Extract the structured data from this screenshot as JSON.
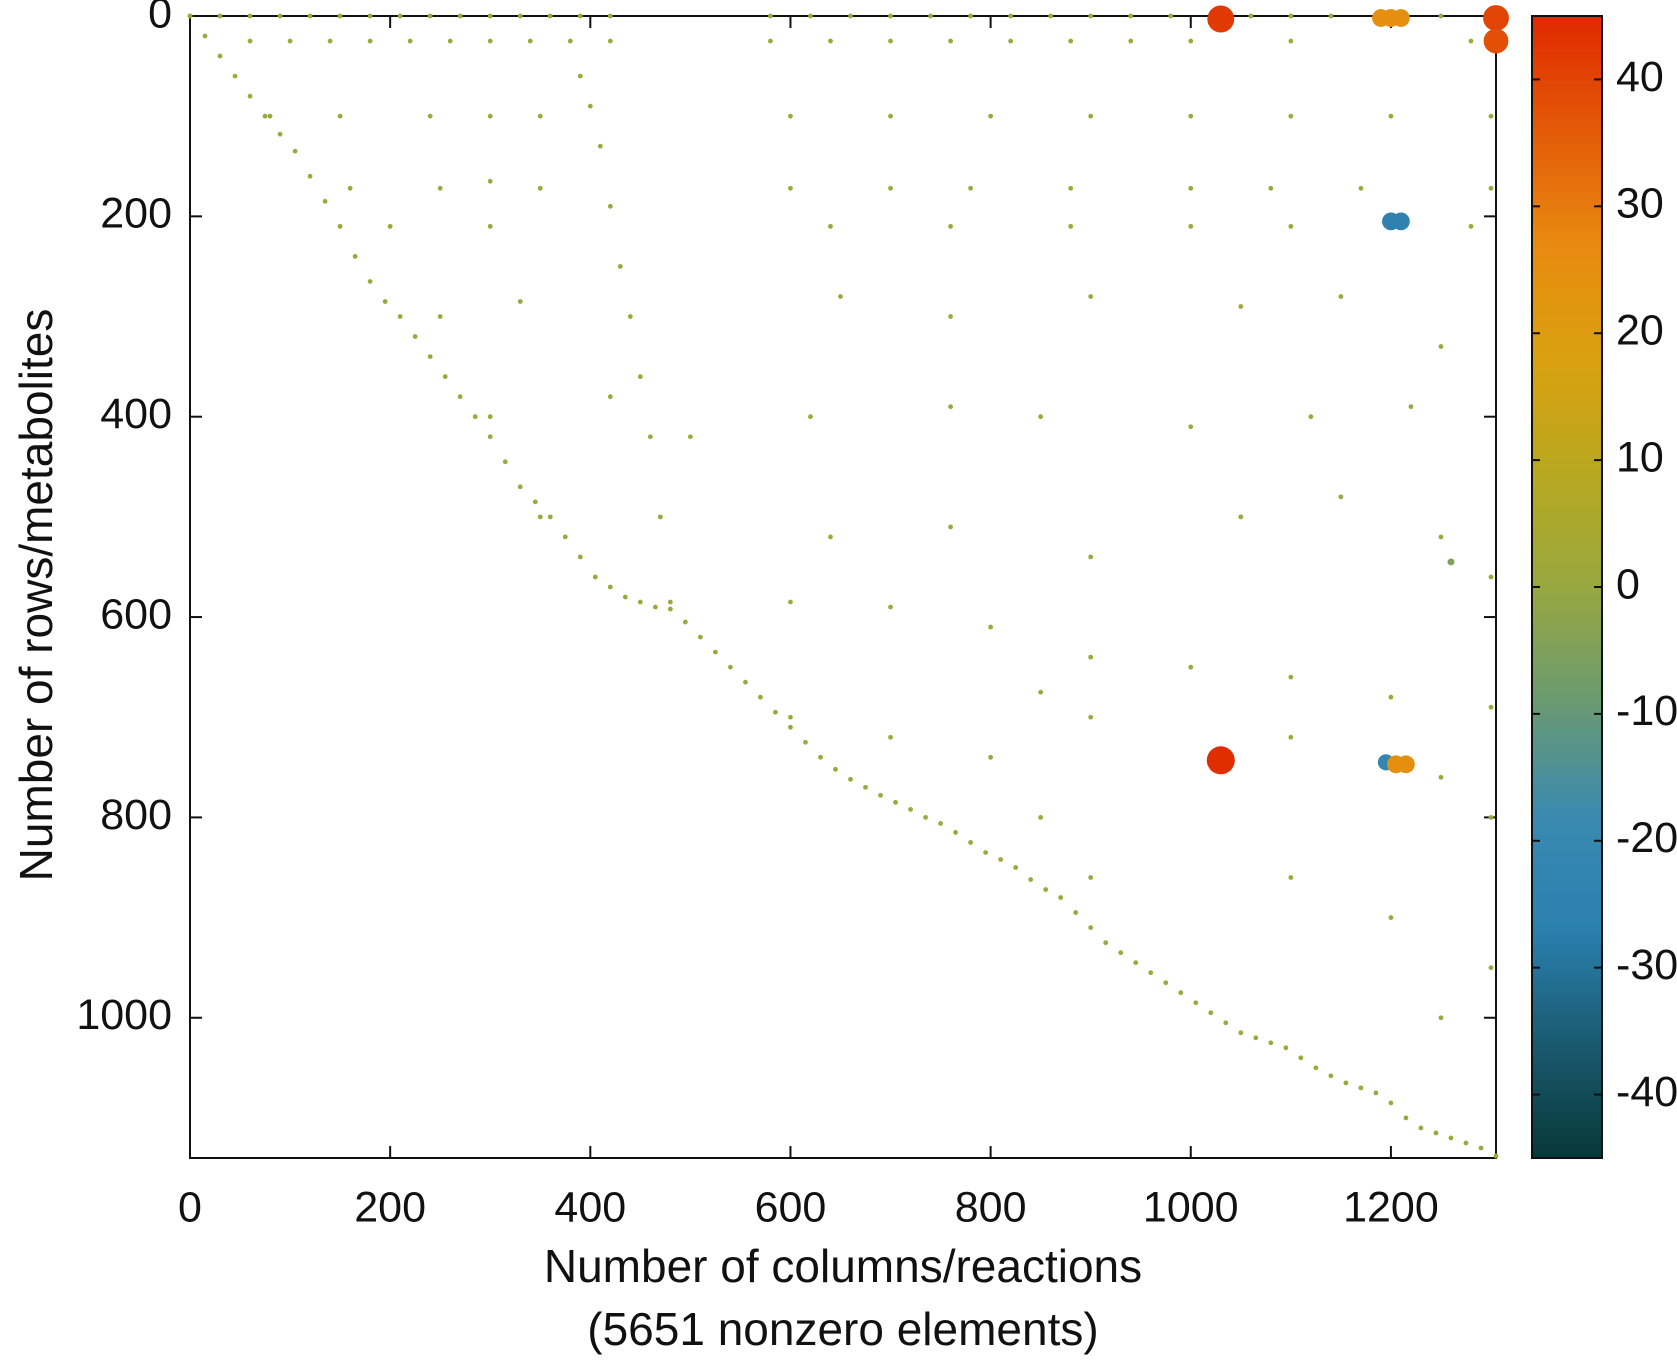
{
  "chart_data": {
    "type": "scatter",
    "xlabel": "Number of columns/reactions",
    "xlabel2": "(5651 nonzero elements)",
    "ylabel": "Number of rows/metabolites",
    "xlim": [
      0,
      1305
    ],
    "ylim": [
      0,
      1140
    ],
    "y_inverted": true,
    "xticks": [
      0,
      200,
      400,
      600,
      800,
      1000,
      1200
    ],
    "yticks": [
      0,
      200,
      400,
      600,
      800,
      1000
    ],
    "clim": [
      -45,
      45
    ],
    "cticks": [
      -40,
      -30,
      -20,
      -10,
      0,
      10,
      20,
      30,
      40
    ],
    "colormap": [
      "#083838",
      "#1a5a70",
      "#2a80b0",
      "#3a8ab0",
      "#6a9a70",
      "#98a840",
      "#b8a820",
      "#daa010",
      "#e88a10",
      "#e45a08",
      "#e02800"
    ],
    "series": [
      {
        "x": [
          0,
          15,
          30,
          45,
          60,
          75,
          90,
          105,
          120,
          135,
          150,
          165,
          180,
          195,
          210,
          225,
          240,
          255,
          270,
          285,
          300,
          315,
          330,
          345,
          360,
          375,
          390,
          405,
          420,
          435,
          450,
          465,
          480,
          495,
          510,
          525,
          540,
          555,
          570,
          585,
          600,
          615,
          630,
          645,
          660,
          675,
          690,
          705,
          720,
          735,
          750,
          765,
          780,
          795,
          810,
          825,
          840,
          855,
          870,
          885,
          900,
          915,
          930,
          945,
          960,
          975,
          990,
          1005,
          1020,
          1035,
          1050,
          1065,
          1080,
          1095,
          1110,
          1125,
          1140,
          1155,
          1170,
          1185,
          1200,
          1215,
          1230,
          1245,
          1260,
          1275,
          1290,
          1305
        ],
        "y": [
          0,
          20,
          40,
          60,
          80,
          100,
          118,
          135,
          160,
          185,
          210,
          240,
          265,
          285,
          300,
          320,
          340,
          360,
          380,
          400,
          420,
          445,
          470,
          485,
          500,
          520,
          540,
          560,
          570,
          580,
          585,
          590,
          592,
          605,
          620,
          635,
          650,
          665,
          680,
          695,
          710,
          725,
          740,
          752,
          762,
          770,
          778,
          785,
          792,
          800,
          806,
          815,
          825,
          835,
          842,
          850,
          862,
          872,
          880,
          895,
          910,
          925,
          935,
          945,
          955,
          965,
          975,
          985,
          995,
          1005,
          1015,
          1020,
          1025,
          1030,
          1040,
          1050,
          1058,
          1065,
          1070,
          1075,
          1085,
          1100,
          1110,
          1115,
          1120,
          1125,
          1130,
          1138
        ],
        "values": [
          1,
          1,
          1,
          1,
          1,
          1,
          1,
          1,
          1,
          1,
          1,
          1,
          1,
          1,
          1,
          1,
          1,
          1,
          1,
          1,
          1,
          1,
          1,
          1,
          1,
          1,
          1,
          1,
          1,
          1,
          1,
          1,
          1,
          1,
          1,
          1,
          1,
          1,
          1,
          1,
          1,
          1,
          1,
          1,
          1,
          1,
          1,
          1,
          1,
          1,
          1,
          1,
          1,
          1,
          1,
          1,
          1,
          1,
          1,
          1,
          1,
          1,
          1,
          1,
          1,
          1,
          1,
          1,
          1,
          1,
          1,
          1,
          1,
          1,
          1,
          1,
          1,
          1,
          1,
          1,
          1,
          1,
          1,
          1,
          1,
          1,
          1,
          1
        ]
      },
      {
        "x": [
          390,
          400,
          410,
          420,
          430,
          440,
          450,
          460,
          470,
          480
        ],
        "y": [
          60,
          90,
          130,
          190,
          250,
          300,
          360,
          420,
          500,
          585
        ],
        "values": [
          1,
          1,
          1,
          1,
          1,
          1,
          1,
          1,
          1,
          1
        ]
      },
      {
        "x": [
          0,
          30,
          60,
          90,
          120,
          150,
          180,
          210,
          240,
          270,
          300,
          330,
          360,
          390,
          420,
          580,
          620,
          660,
          700,
          740,
          780,
          820,
          860,
          900,
          940,
          980,
          1060,
          1100,
          1140,
          1250,
          60,
          100,
          140,
          180,
          220,
          260,
          300,
          340,
          380,
          420,
          580,
          640,
          700,
          760,
          820,
          880,
          940,
          1000,
          1100,
          1280
        ],
        "y": [
          0,
          0,
          0,
          0,
          0,
          0,
          0,
          0,
          0,
          0,
          0,
          0,
          0,
          0,
          0,
          0,
          0,
          0,
          0,
          0,
          0,
          0,
          0,
          0,
          0,
          0,
          0,
          0,
          0,
          0,
          25,
          25,
          25,
          25,
          25,
          25,
          25,
          25,
          25,
          25,
          25,
          25,
          25,
          25,
          25,
          25,
          25,
          25,
          25,
          25
        ],
        "values": [
          1,
          1,
          1,
          1,
          1,
          1,
          1,
          1,
          1,
          1,
          1,
          1,
          1,
          1,
          1,
          1,
          1,
          1,
          1,
          1,
          1,
          1,
          1,
          1,
          1,
          1,
          1,
          1,
          1,
          1,
          1,
          1,
          1,
          1,
          1,
          1,
          1,
          1,
          1,
          1,
          1,
          1,
          1,
          1,
          1,
          1,
          1,
          1,
          1,
          1
        ]
      },
      {
        "x": [
          80,
          150,
          240,
          300,
          350,
          600,
          700,
          800,
          900,
          1000,
          1100,
          1200,
          1300,
          160,
          250,
          300,
          350,
          600,
          700,
          780,
          880,
          1000,
          1080,
          1170,
          1300,
          200,
          300,
          640,
          760,
          880,
          1000,
          1100,
          1280,
          250,
          330,
          650,
          760,
          900,
          1050,
          1150,
          1250,
          300,
          420,
          620,
          760,
          850,
          1000,
          1120,
          1220,
          350,
          500,
          640,
          760,
          900,
          1050,
          1150,
          1250,
          1300,
          600,
          700,
          800,
          900,
          1000,
          1100,
          1200,
          1300,
          600,
          700,
          800,
          850,
          900,
          1100,
          1250,
          1300,
          850,
          900,
          1100,
          1200,
          1300,
          1250
        ],
        "y": [
          100,
          100,
          100,
          100,
          100,
          100,
          100,
          100,
          100,
          100,
          100,
          100,
          100,
          172,
          172,
          165,
          172,
          172,
          172,
          172,
          172,
          172,
          172,
          172,
          172,
          210,
          210,
          210,
          210,
          210,
          210,
          210,
          210,
          300,
          285,
          280,
          300,
          280,
          290,
          280,
          330,
          400,
          380,
          400,
          390,
          400,
          410,
          400,
          390,
          500,
          420,
          520,
          510,
          540,
          500,
          480,
          520,
          560,
          585,
          590,
          610,
          640,
          650,
          660,
          680,
          690,
          700,
          720,
          740,
          675,
          700,
          720,
          760,
          800,
          800,
          860,
          860,
          900,
          950,
          1000
        ],
        "values": [
          1,
          1,
          1,
          1,
          1,
          1,
          1,
          1,
          1,
          1,
          1,
          1,
          1,
          1,
          1,
          1,
          1,
          1,
          1,
          1,
          1,
          1,
          1,
          1,
          1,
          1,
          1,
          1,
          1,
          1,
          1,
          1,
          1,
          1,
          1,
          1,
          1,
          1,
          1,
          1,
          1,
          1,
          1,
          1,
          1,
          1,
          1,
          1,
          1,
          1,
          1,
          1,
          1,
          1,
          1,
          1,
          1,
          1,
          1,
          1,
          1,
          1,
          1,
          1,
          1,
          1,
          1,
          1,
          1,
          1,
          1,
          1,
          1,
          1,
          1,
          1,
          1,
          1,
          1,
          1
        ]
      },
      {
        "x": [
          1260,
          1030,
          1190,
          1200,
          1210,
          1305,
          1305,
          1200,
          1210,
          1030,
          1195,
          1205,
          1215
        ],
        "y": [
          545,
          3,
          2,
          2,
          2,
          2,
          25,
          205,
          205,
          743,
          745,
          747,
          747
        ],
        "values": [
          -5,
          42,
          25,
          25,
          25,
          40,
          38,
          -25,
          -25,
          44,
          -22,
          25,
          25
        ]
      }
    ]
  }
}
